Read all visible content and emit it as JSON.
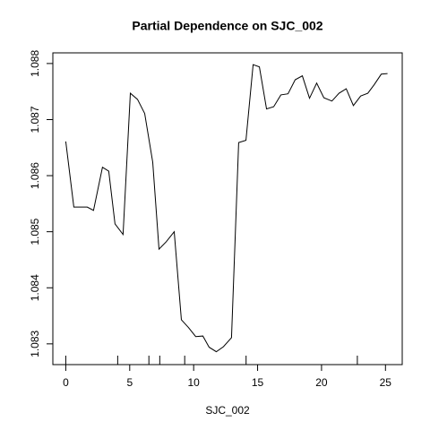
{
  "chart_data": {
    "type": "line",
    "title": "Partial Dependence on SJC_002",
    "x_label": "SJC_002",
    "x": [
      0,
      0.63,
      1.68,
      2.17,
      2.87,
      3.36,
      3.85,
      4.48,
      5.05,
      5.61,
      6.17,
      6.8,
      7.29,
      7.85,
      8.48,
      9.04,
      9.6,
      10.16,
      10.72,
      11.21,
      11.77,
      12.33,
      12.96,
      13.52,
      14.09,
      14.65,
      15.14,
      15.7,
      16.26,
      16.82,
      17.38,
      17.94,
      18.5,
      19.06,
      19.62,
      20.18,
      20.81,
      21.37,
      21.93,
      22.49,
      23.06,
      23.62,
      24.11,
      24.67,
      25.16
    ],
    "values": [
      1.08661,
      1.08544,
      1.08544,
      1.08538,
      1.08615,
      1.08608,
      1.08514,
      1.08495,
      1.08747,
      1.08736,
      1.08711,
      1.08624,
      1.08469,
      1.08482,
      1.085,
      1.08343,
      1.08329,
      1.08313,
      1.08314,
      1.08294,
      1.08286,
      1.08295,
      1.08311,
      1.08659,
      1.08663,
      1.08798,
      1.08794,
      1.08719,
      1.08723,
      1.08744,
      1.08746,
      1.08771,
      1.08778,
      1.08738,
      1.08765,
      1.08739,
      1.08733,
      1.08747,
      1.08755,
      1.08725,
      1.08742,
      1.08747,
      1.08762,
      1.08781,
      1.08782
    ],
    "color": "#000000",
    "rug": [
      0,
      4.06,
      6.5,
      7.35,
      9.3,
      14.1,
      22.8
    ],
    "xlim": [
      -1.01,
      26.31
    ],
    "xticks": [
      0,
      5,
      10,
      15,
      20,
      25
    ],
    "ylim": [
      1.08263,
      1.08819
    ],
    "yticks": [
      1.083,
      1.084,
      1.085,
      1.086,
      1.087,
      1.088
    ]
  }
}
